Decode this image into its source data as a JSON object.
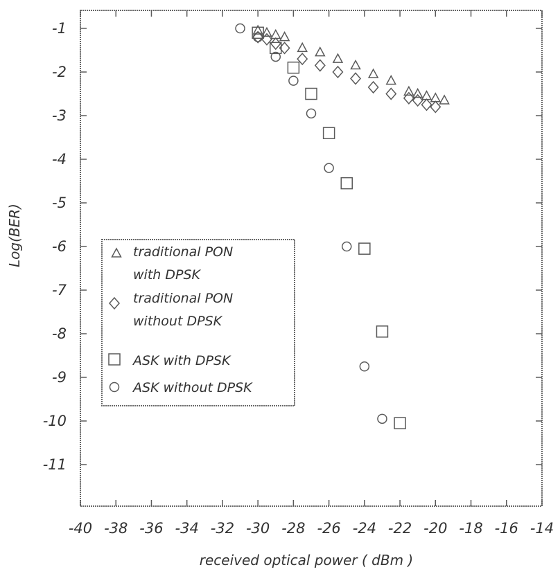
{
  "chart_data": {
    "type": "scatter",
    "title": "",
    "xlabel": "received optical power ( dBm )",
    "ylabel": "Log(BER)",
    "xlim": [
      -40,
      -14
    ],
    "ylim": [
      -11,
      -0.6
    ],
    "xticks": [
      -40,
      -38,
      -36,
      -34,
      -32,
      -30,
      -28,
      -26,
      -24,
      -22,
      -20,
      -18,
      -16,
      -14
    ],
    "yticks": [
      -1,
      -2,
      -3,
      -4,
      -5,
      -6,
      -7,
      -8,
      -9,
      -10,
      -11
    ],
    "xtick_labels": [
      "-40",
      "-38",
      "-36",
      "-34",
      "-32",
      "-30",
      "-28",
      "-26",
      "-24",
      "-22",
      "-20",
      "-18",
      "-16",
      "-14"
    ],
    "ytick_labels": [
      "-1",
      "-2",
      "-3",
      "-4",
      "-5",
      "-6",
      "-7",
      "-8",
      "-9",
      "-10",
      "-11"
    ],
    "grid": false,
    "legend_position": "center-left",
    "series": [
      {
        "name": "traditional PON with DPSK",
        "legend_lines": [
          "traditional PON",
          "with DPSK"
        ],
        "marker": "triangle",
        "x": [
          -30,
          -29.5,
          -29,
          -28.5,
          -27.5,
          -26.5,
          -25.5,
          -24.5,
          -23.5,
          -22.5,
          -21.5,
          -21,
          -20.5,
          -20,
          -19.5
        ],
        "y": [
          -1.05,
          -1.1,
          -1.15,
          -1.2,
          -1.45,
          -1.55,
          -1.7,
          -1.85,
          -2.05,
          -2.2,
          -2.45,
          -2.5,
          -2.55,
          -2.6,
          -2.65
        ]
      },
      {
        "name": "traditional PON without DPSK",
        "legend_lines": [
          "traditional PON",
          "without DPSK"
        ],
        "marker": "diamond",
        "x": [
          -30,
          -29.5,
          -29,
          -28.5,
          -27.5,
          -26.5,
          -25.5,
          -24.5,
          -23.5,
          -22.5,
          -21.5,
          -21,
          -20.5,
          -20
        ],
        "y": [
          -1.2,
          -1.25,
          -1.35,
          -1.45,
          -1.7,
          -1.85,
          -2.0,
          -2.15,
          -2.35,
          -2.5,
          -2.6,
          -2.65,
          -2.75,
          -2.8
        ]
      },
      {
        "name": "ASK with DPSK",
        "legend_lines": [
          "ASK with DPSK"
        ],
        "marker": "square",
        "x": [
          -30,
          -29,
          -28,
          -27,
          -26,
          -25,
          -24,
          -23,
          -22
        ],
        "y": [
          -1.1,
          -1.45,
          -1.9,
          -2.5,
          -3.4,
          -4.55,
          -6.05,
          -7.95,
          -10.05
        ]
      },
      {
        "name": "ASK without DPSK",
        "legend_lines": [
          "ASK without DPSK"
        ],
        "marker": "circle",
        "x": [
          -31,
          -30,
          -29,
          -28,
          -27,
          -26,
          -25,
          -24,
          -23
        ],
        "y": [
          -1.0,
          -1.2,
          -1.65,
          -2.2,
          -2.95,
          -4.2,
          -6.0,
          -8.75,
          -9.95
        ]
      }
    ]
  }
}
